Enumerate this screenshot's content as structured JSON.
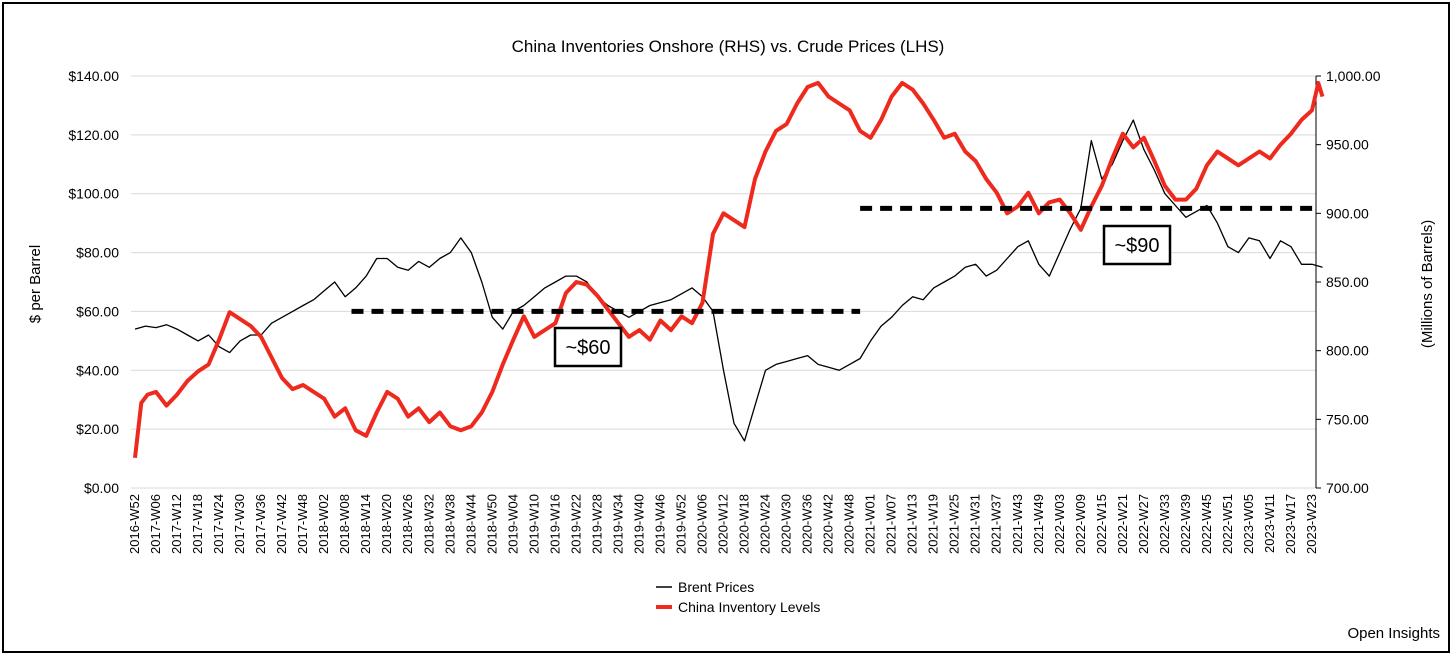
{
  "chart_data": {
    "type": "line",
    "title": "China Inventories Onshore (RHS) vs. Crude Prices (LHS)",
    "ylabel_left": "$ per Barrel",
    "ylabel_right": "(Millions of Barrels)",
    "ylim_left": [
      0,
      140
    ],
    "ylim_right": [
      700,
      1000
    ],
    "yticks_left": [
      0,
      20,
      40,
      60,
      80,
      100,
      120,
      140
    ],
    "yticks_left_labels": [
      "$0.00",
      "$20.00",
      "$40.00",
      "$60.00",
      "$80.00",
      "$100.00",
      "$120.00",
      "$140.00"
    ],
    "yticks_right": [
      700,
      750,
      800,
      850,
      900,
      950,
      1000
    ],
    "yticks_right_labels": [
      "700.00",
      "750.00",
      "800.00",
      "850.00",
      "900.00",
      "950.00",
      "1,000.00"
    ],
    "x_ticks": [
      "2016-W52",
      "2017-W06",
      "2017-W12",
      "2017-W18",
      "2017-W24",
      "2017-W30",
      "2017-W36",
      "2017-W42",
      "2017-W48",
      "2018-W02",
      "2018-W08",
      "2018-W14",
      "2018-W20",
      "2018-W26",
      "2018-W32",
      "2018-W38",
      "2018-W44",
      "2018-W50",
      "2019-W04",
      "2019-W10",
      "2019-W16",
      "2019-W22",
      "2019-W28",
      "2019-W34",
      "2019-W40",
      "2019-W46",
      "2019-W52",
      "2020-W06",
      "2020-W12",
      "2020-W18",
      "2020-W24",
      "2020-W30",
      "2020-W36",
      "2020-W42",
      "2020-W48",
      "2021-W01",
      "2021-W07",
      "2021-W13",
      "2021-W19",
      "2021-W25",
      "2021-W31",
      "2021-W37",
      "2021-W43",
      "2021-W49",
      "2022-W03",
      "2022-W09",
      "2022-W15",
      "2022-W21",
      "2022-W27",
      "2022-W33",
      "2022-W39",
      "2022-W45",
      "2022-W51",
      "2023-W05",
      "2023-W11",
      "2023-W17",
      "2023-W23"
    ],
    "series": [
      {
        "name": "Brent Prices",
        "axis": "left",
        "color": "#000000",
        "points": [
          [
            0,
            54
          ],
          [
            0.5,
            55
          ],
          [
            1,
            54.5
          ],
          [
            1.5,
            55.5
          ],
          [
            2,
            54
          ],
          [
            2.5,
            52
          ],
          [
            3,
            50
          ],
          [
            3.5,
            52
          ],
          [
            4,
            48
          ],
          [
            4.5,
            46
          ],
          [
            5,
            50
          ],
          [
            5.5,
            52
          ],
          [
            6,
            52
          ],
          [
            6.5,
            56
          ],
          [
            7,
            58
          ],
          [
            7.5,
            60
          ],
          [
            8,
            62
          ],
          [
            8.5,
            64
          ],
          [
            9,
            67
          ],
          [
            9.5,
            70
          ],
          [
            10,
            65
          ],
          [
            10.5,
            68
          ],
          [
            11,
            72
          ],
          [
            11.5,
            78
          ],
          [
            12,
            78
          ],
          [
            12.5,
            75
          ],
          [
            13,
            74
          ],
          [
            13.5,
            77
          ],
          [
            14,
            75
          ],
          [
            14.5,
            78
          ],
          [
            15,
            80
          ],
          [
            15.5,
            85
          ],
          [
            16,
            80
          ],
          [
            16.5,
            70
          ],
          [
            17,
            58
          ],
          [
            17.5,
            54
          ],
          [
            18,
            60
          ],
          [
            18.5,
            62
          ],
          [
            19,
            65
          ],
          [
            19.5,
            68
          ],
          [
            20,
            70
          ],
          [
            20.5,
            72
          ],
          [
            21,
            72
          ],
          [
            21.5,
            70
          ],
          [
            22,
            65
          ],
          [
            22.5,
            62
          ],
          [
            23,
            60
          ],
          [
            23.5,
            58
          ],
          [
            24,
            60
          ],
          [
            24.5,
            62
          ],
          [
            25,
            63
          ],
          [
            25.5,
            64
          ],
          [
            26,
            66
          ],
          [
            26.5,
            68
          ],
          [
            27,
            65
          ],
          [
            27.5,
            60
          ],
          [
            28,
            40
          ],
          [
            28.5,
            22
          ],
          [
            29,
            16
          ],
          [
            29.5,
            28
          ],
          [
            30,
            40
          ],
          [
            30.5,
            42
          ],
          [
            31,
            43
          ],
          [
            31.5,
            44
          ],
          [
            32,
            45
          ],
          [
            32.5,
            42
          ],
          [
            33,
            41
          ],
          [
            33.5,
            40
          ],
          [
            34,
            42
          ],
          [
            34.5,
            44
          ],
          [
            35,
            50
          ],
          [
            35.5,
            55
          ],
          [
            36,
            58
          ],
          [
            36.5,
            62
          ],
          [
            37,
            65
          ],
          [
            37.5,
            64
          ],
          [
            38,
            68
          ],
          [
            38.5,
            70
          ],
          [
            39,
            72
          ],
          [
            39.5,
            75
          ],
          [
            40,
            76
          ],
          [
            40.5,
            72
          ],
          [
            41,
            74
          ],
          [
            41.5,
            78
          ],
          [
            42,
            82
          ],
          [
            42.5,
            84
          ],
          [
            43,
            76
          ],
          [
            43.5,
            72
          ],
          [
            44,
            80
          ],
          [
            44.5,
            88
          ],
          [
            45,
            95
          ],
          [
            45.5,
            118
          ],
          [
            46,
            105
          ],
          [
            46.5,
            110
          ],
          [
            47,
            118
          ],
          [
            47.5,
            125
          ],
          [
            48,
            115
          ],
          [
            48.5,
            108
          ],
          [
            49,
            100
          ],
          [
            49.5,
            96
          ],
          [
            50,
            92
          ],
          [
            50.5,
            94
          ],
          [
            51,
            96
          ],
          [
            51.5,
            90
          ],
          [
            52,
            82
          ],
          [
            52.5,
            80
          ],
          [
            53,
            85
          ],
          [
            53.5,
            84
          ],
          [
            54,
            78
          ],
          [
            54.5,
            84
          ],
          [
            55,
            82
          ],
          [
            55.5,
            76
          ],
          [
            56,
            76
          ],
          [
            56.5,
            75
          ]
        ]
      },
      {
        "name": "China Inventory Levels",
        "axis": "right",
        "color": "#ee2a1e",
        "points": [
          [
            0,
            722
          ],
          [
            0.3,
            762
          ],
          [
            0.6,
            768
          ],
          [
            1,
            770
          ],
          [
            1.5,
            760
          ],
          [
            2,
            768
          ],
          [
            2.5,
            778
          ],
          [
            3,
            785
          ],
          [
            3.5,
            790
          ],
          [
            4,
            808
          ],
          [
            4.5,
            828
          ],
          [
            5,
            823
          ],
          [
            5.5,
            818
          ],
          [
            6,
            810
          ],
          [
            6.5,
            795
          ],
          [
            7,
            780
          ],
          [
            7.5,
            772
          ],
          [
            8,
            775
          ],
          [
            8.5,
            770
          ],
          [
            9,
            765
          ],
          [
            9.5,
            752
          ],
          [
            10,
            758
          ],
          [
            10.5,
            742
          ],
          [
            11,
            738
          ],
          [
            11.5,
            755
          ],
          [
            12,
            770
          ],
          [
            12.5,
            765
          ],
          [
            13,
            752
          ],
          [
            13.5,
            758
          ],
          [
            14,
            748
          ],
          [
            14.5,
            755
          ],
          [
            15,
            745
          ],
          [
            15.5,
            742
          ],
          [
            16,
            745
          ],
          [
            16.5,
            755
          ],
          [
            17,
            770
          ],
          [
            17.5,
            790
          ],
          [
            18,
            808
          ],
          [
            18.5,
            825
          ],
          [
            19,
            810
          ],
          [
            19.5,
            815
          ],
          [
            20,
            820
          ],
          [
            20.5,
            842
          ],
          [
            21,
            850
          ],
          [
            21.5,
            848
          ],
          [
            22,
            840
          ],
          [
            22.5,
            830
          ],
          [
            23,
            820
          ],
          [
            23.5,
            810
          ],
          [
            24,
            815
          ],
          [
            24.5,
            808
          ],
          [
            25,
            822
          ],
          [
            25.5,
            815
          ],
          [
            26,
            825
          ],
          [
            26.5,
            820
          ],
          [
            27,
            835
          ],
          [
            27.5,
            885
          ],
          [
            28,
            900
          ],
          [
            28.5,
            895
          ],
          [
            29,
            890
          ],
          [
            29.5,
            925
          ],
          [
            30,
            945
          ],
          [
            30.5,
            960
          ],
          [
            31,
            965
          ],
          [
            31.5,
            980
          ],
          [
            32,
            992
          ],
          [
            32.5,
            995
          ],
          [
            33,
            985
          ],
          [
            33.5,
            980
          ],
          [
            34,
            975
          ],
          [
            34.5,
            960
          ],
          [
            35,
            955
          ],
          [
            35.5,
            968
          ],
          [
            36,
            985
          ],
          [
            36.5,
            995
          ],
          [
            37,
            990
          ],
          [
            37.5,
            980
          ],
          [
            38,
            968
          ],
          [
            38.5,
            955
          ],
          [
            39,
            958
          ],
          [
            39.5,
            945
          ],
          [
            40,
            938
          ],
          [
            40.5,
            925
          ],
          [
            41,
            915
          ],
          [
            41.5,
            900
          ],
          [
            42,
            905
          ],
          [
            42.5,
            915
          ],
          [
            43,
            900
          ],
          [
            43.5,
            908
          ],
          [
            44,
            910
          ],
          [
            44.5,
            900
          ],
          [
            45,
            888
          ],
          [
            45.5,
            905
          ],
          [
            46,
            920
          ],
          [
            46.5,
            940
          ],
          [
            47,
            958
          ],
          [
            47.5,
            948
          ],
          [
            48,
            955
          ],
          [
            48.5,
            938
          ],
          [
            49,
            920
          ],
          [
            49.5,
            910
          ],
          [
            50,
            910
          ],
          [
            50.5,
            918
          ],
          [
            51,
            935
          ],
          [
            51.5,
            945
          ],
          [
            52,
            940
          ],
          [
            52.5,
            935
          ],
          [
            53,
            940
          ],
          [
            53.5,
            945
          ],
          [
            54,
            940
          ],
          [
            54.5,
            950
          ],
          [
            55,
            958
          ],
          [
            55.5,
            968
          ],
          [
            56,
            975
          ],
          [
            56.3,
            995
          ],
          [
            56.5,
            985
          ]
        ]
      }
    ],
    "annotations": [
      {
        "label": "~$60",
        "value_left": 60,
        "x_from": 10.3,
        "x_to": 34.5
      },
      {
        "label": "~$90",
        "value_left": 95,
        "x_from": 34.5,
        "x_to": 57
      }
    ],
    "legend": [
      "Brent Prices",
      "China Inventory Levels"
    ],
    "legend_position": "bottom-center",
    "grid": true
  },
  "credit": "Open Insights"
}
